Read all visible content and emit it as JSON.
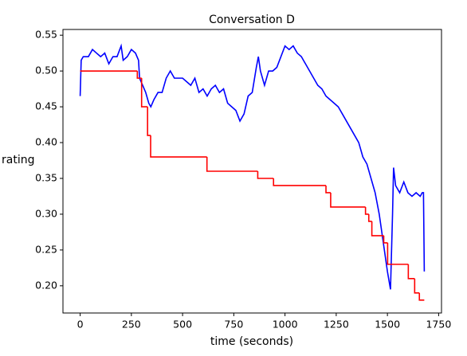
{
  "chart_data": {
    "type": "line",
    "title": "Conversation D",
    "xlabel": "time (seconds)",
    "ylabel": "rating",
    "xlim": [
      -84,
      1764
    ],
    "ylim": [
      0.162,
      0.558
    ],
    "xticks": [
      0,
      250,
      500,
      750,
      1000,
      1250,
      1500,
      1750
    ],
    "yticks": [
      {
        "value": 0.2,
        "label": "0.20"
      },
      0.25,
      {
        "value": 0.3,
        "label": "0.30"
      },
      0.35,
      {
        "value": 0.4,
        "label": "0.40"
      },
      0.45,
      {
        "value": 0.5,
        "label": "0.50"
      },
      0.55
    ],
    "grid": false,
    "series": [
      {
        "color": "#0000ff",
        "style": "line",
        "x": [
          0,
          5,
          15,
          40,
          60,
          80,
          100,
          120,
          140,
          160,
          180,
          200,
          210,
          230,
          250,
          270,
          285,
          290,
          305,
          320,
          335,
          345,
          360,
          380,
          400,
          420,
          440,
          460,
          480,
          500,
          520,
          540,
          560,
          580,
          600,
          620,
          640,
          660,
          680,
          700,
          720,
          740,
          760,
          780,
          800,
          820,
          840,
          860,
          870,
          880,
          900,
          920,
          940,
          960,
          980,
          1000,
          1020,
          1040,
          1060,
          1080,
          1100,
          1120,
          1140,
          1160,
          1180,
          1200,
          1220,
          1240,
          1260,
          1280,
          1300,
          1320,
          1340,
          1360,
          1380,
          1400,
          1420,
          1440,
          1460,
          1480,
          1500,
          1515,
          1525,
          1530,
          1540,
          1560,
          1580,
          1600,
          1620,
          1640,
          1660,
          1670,
          1676,
          1680
        ],
        "values": [
          0.465,
          0.515,
          0.52,
          0.52,
          0.53,
          0.525,
          0.52,
          0.525,
          0.51,
          0.52,
          0.52,
          0.535,
          0.515,
          0.52,
          0.53,
          0.525,
          0.515,
          0.49,
          0.48,
          0.47,
          0.455,
          0.45,
          0.46,
          0.47,
          0.47,
          0.49,
          0.5,
          0.49,
          0.49,
          0.49,
          0.485,
          0.48,
          0.49,
          0.47,
          0.475,
          0.465,
          0.475,
          0.48,
          0.47,
          0.475,
          0.455,
          0.45,
          0.445,
          0.43,
          0.44,
          0.465,
          0.47,
          0.505,
          0.52,
          0.5,
          0.48,
          0.5,
          0.5,
          0.505,
          0.52,
          0.535,
          0.53,
          0.535,
          0.525,
          0.52,
          0.51,
          0.5,
          0.49,
          0.48,
          0.475,
          0.465,
          0.46,
          0.455,
          0.45,
          0.44,
          0.43,
          0.42,
          0.41,
          0.4,
          0.38,
          0.37,
          0.35,
          0.33,
          0.3,
          0.26,
          0.22,
          0.195,
          0.3,
          0.365,
          0.34,
          0.33,
          0.345,
          0.33,
          0.325,
          0.33,
          0.325,
          0.33,
          0.33,
          0.22
        ]
      },
      {
        "color": "#ff0000",
        "style": "steps-post",
        "x": [
          0,
          279,
          300,
          329,
          344,
          619,
          867,
          944,
          1200,
          1223,
          1393,
          1409,
          1424,
          1482,
          1501,
          1602,
          1633,
          1656,
          1680
        ],
        "values": [
          0.5,
          0.49,
          0.45,
          0.41,
          0.38,
          0.36,
          0.35,
          0.34,
          0.33,
          0.31,
          0.3,
          0.29,
          0.27,
          0.26,
          0.23,
          0.21,
          0.19,
          0.18,
          0.18
        ]
      }
    ]
  }
}
